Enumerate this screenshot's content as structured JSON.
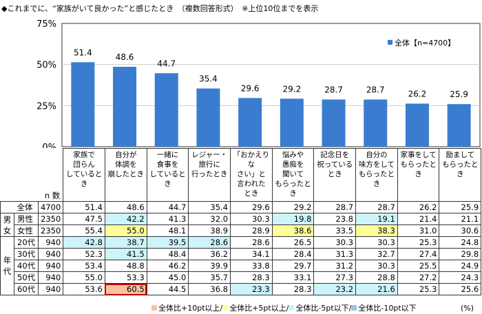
{
  "title": "◆これまでに、“家族がいて良かった”と感じたとき　（複数回答形式）　※上位10位までを表示",
  "chart_data": {
    "type": "bar",
    "categories": [
      "家族で\n団らん\nしているとき",
      "自分が\n体調を\n崩したとき",
      "一緒に\n食事を\nしているとき",
      "レジャー・\n旅行に\n行ったとき",
      "「おかえりな\nさい」と\n言われた\nとき",
      "悩みや\n愚痴を\n聞いて\nもらったとき",
      "記念日を\n祝っている\nとき",
      "自分の\n味方をして\nもらったとき",
      "家事をして\nもらったとき",
      "励まして\nもらったとき"
    ],
    "series": [
      {
        "name": "全体【n=4700】",
        "values": [
          51.4,
          48.6,
          44.7,
          35.4,
          29.6,
          29.2,
          28.7,
          28.7,
          26.2,
          25.9
        ],
        "color": "#3a7dd0"
      }
    ],
    "ylim": [
      0,
      75
    ],
    "yticks": [
      "0%",
      "25%",
      "50%",
      "75%"
    ],
    "grid": true,
    "legend": "top-right"
  },
  "table": {
    "n_header": "n 数",
    "rows": [
      {
        "group": "",
        "label": "全体",
        "n": "4700",
        "values": [
          "51.4",
          "48.6",
          "44.7",
          "35.4",
          "29.6",
          "29.2",
          "28.7",
          "28.7",
          "26.2",
          "25.9"
        ],
        "hl": [
          0,
          0,
          0,
          0,
          0,
          0,
          0,
          0,
          0,
          0
        ]
      },
      {
        "group": "男\n女",
        "label": "男性",
        "n": "2350",
        "values": [
          "47.5",
          "42.2",
          "41.3",
          "32.0",
          "30.3",
          "19.8",
          "23.8",
          "19.1",
          "21.4",
          "21.1"
        ],
        "hl": [
          0,
          3,
          0,
          0,
          0,
          3,
          0,
          3,
          0,
          0
        ]
      },
      {
        "group": "",
        "label": "女性",
        "n": "2350",
        "values": [
          "55.4",
          "55.0",
          "48.1",
          "38.9",
          "28.9",
          "38.6",
          "33.5",
          "38.3",
          "31.0",
          "30.6"
        ],
        "hl": [
          0,
          2,
          0,
          0,
          0,
          2,
          0,
          2,
          0,
          0
        ]
      },
      {
        "group": "年\n代",
        "label": "20代",
        "n": "940",
        "values": [
          "42.8",
          "38.7",
          "39.5",
          "28.6",
          "28.6",
          "26.5",
          "30.3",
          "30.3",
          "25.3",
          "24.8"
        ],
        "hl": [
          3,
          3,
          3,
          3,
          0,
          0,
          0,
          0,
          0,
          0
        ]
      },
      {
        "group": "",
        "label": "30代",
        "n": "940",
        "values": [
          "52.3",
          "41.5",
          "48.4",
          "36.2",
          "34.1",
          "28.4",
          "31.3",
          "32.7",
          "27.4",
          "29.8"
        ],
        "hl": [
          0,
          3,
          0,
          0,
          0,
          0,
          0,
          0,
          0,
          0
        ]
      },
      {
        "group": "",
        "label": "40代",
        "n": "940",
        "values": [
          "53.4",
          "48.8",
          "46.2",
          "39.9",
          "33.8",
          "29.7",
          "31.2",
          "30.3",
          "25.5",
          "24.9"
        ],
        "hl": [
          0,
          0,
          0,
          0,
          0,
          0,
          0,
          0,
          0,
          0
        ]
      },
      {
        "group": "",
        "label": "50代",
        "n": "940",
        "values": [
          "55.0",
          "53.3",
          "45.0",
          "35.7",
          "28.3",
          "33.1",
          "27.3",
          "28.8",
          "27.2",
          "24.3"
        ],
        "hl": [
          0,
          0,
          0,
          0,
          0,
          0,
          0,
          0,
          0,
          0
        ]
      },
      {
        "group": "",
        "label": "60代",
        "n": "940",
        "values": [
          "53.6",
          "60.5",
          "44.5",
          "36.8",
          "23.3",
          "28.3",
          "23.2",
          "21.6",
          "25.3",
          "25.6"
        ],
        "hl": [
          0,
          1,
          0,
          0,
          3,
          0,
          3,
          3,
          0,
          0
        ]
      }
    ],
    "highlight_colors": {
      "1": "#f8c29c",
      "2": "#ffff99",
      "3": "#ccf4fa",
      "4": "#9dc3e6"
    }
  },
  "legend": [
    {
      "label": "全体比+10pt以上/",
      "color": "#f8c29c"
    },
    {
      "label": "全体比+5pt以上/",
      "color": "#ffff99"
    },
    {
      "label": "全体比-5pt以下/",
      "color": "#ccf4fa"
    },
    {
      "label": "全体比-10pt以下",
      "color": "#9dc3e6"
    }
  ],
  "unit": "(%)"
}
